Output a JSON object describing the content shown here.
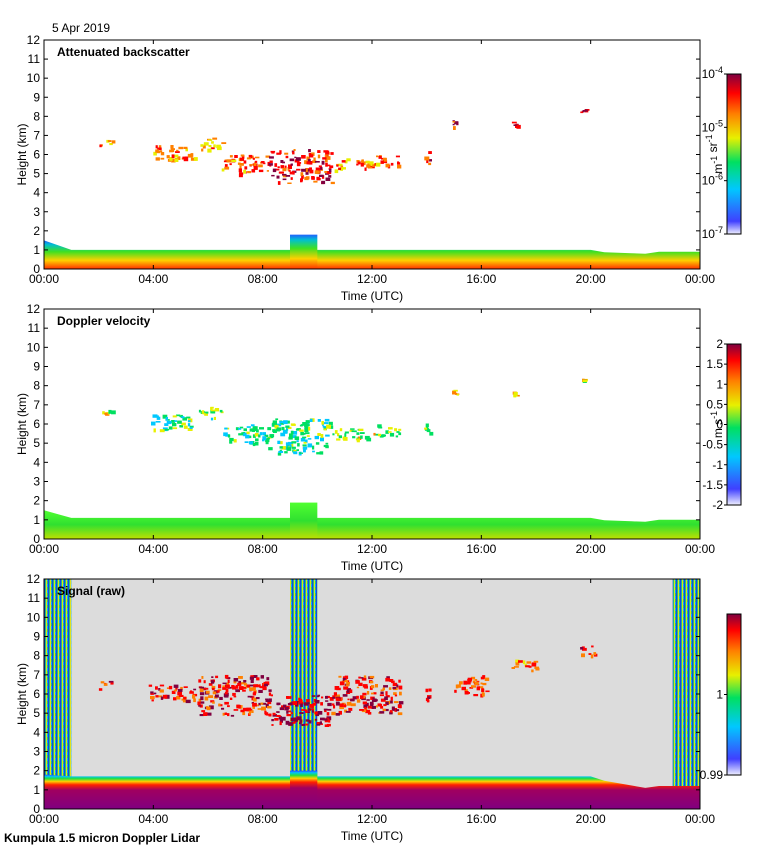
{
  "header": {
    "date": "5 Apr 2019"
  },
  "footer": {
    "instrument": "Kumpula 1.5 micron Doppler Lidar"
  },
  "colors": {
    "background": "#ffffff",
    "raw_fill": "#dcdcdc",
    "axis": "#000000"
  },
  "chart_data": [
    {
      "type": "heatmap",
      "panel_title": "Attenuated backscatter",
      "xlabel": "Time (UTC)",
      "ylabel": "Height (km)",
      "x_ticks": [
        "00:00",
        "04:00",
        "08:00",
        "12:00",
        "16:00",
        "20:00",
        "00:00"
      ],
      "xlim_hours": [
        0,
        24
      ],
      "ylim_km": [
        0,
        12
      ],
      "y_ticks": [
        0,
        1,
        2,
        3,
        4,
        5,
        6,
        7,
        8,
        9,
        10,
        11,
        12
      ],
      "colorbar": {
        "unit_html": "m<sup>-1</sup> sr<sup>-1</sup>",
        "unit": "m-1 sr-1",
        "scale": "log",
        "ticks": [
          "10-7",
          "10-6",
          "10-5",
          "10-4"
        ],
        "range": [
          1e-07,
          0.0001
        ]
      },
      "cloud_layers": [
        {
          "t": [
            2.0,
            2.5
          ],
          "h": [
            6.5,
            6.8
          ],
          "level": 0.65
        },
        {
          "t": [
            3.9,
            5.5
          ],
          "h": [
            5.7,
            6.5
          ],
          "level": 0.68
        },
        {
          "t": [
            5.6,
            6.5
          ],
          "h": [
            6.3,
            6.9
          ],
          "level": 0.62
        },
        {
          "t": [
            6.5,
            8.2
          ],
          "h": [
            5.0,
            6.0
          ],
          "level": 0.72
        },
        {
          "t": [
            8.2,
            10.5
          ],
          "h": [
            4.5,
            6.3
          ],
          "level": 0.85
        },
        {
          "t": [
            10.5,
            12.0
          ],
          "h": [
            5.2,
            5.8
          ],
          "level": 0.7
        },
        {
          "t": [
            12.0,
            13.0
          ],
          "h": [
            5.4,
            6.0
          ],
          "level": 0.75
        },
        {
          "t": [
            13.9,
            14.1
          ],
          "h": [
            5.5,
            6.3
          ],
          "level": 0.8
        },
        {
          "t": [
            14.9,
            15.1
          ],
          "h": [
            7.4,
            7.8
          ],
          "level": 0.9
        },
        {
          "t": [
            17.1,
            17.3
          ],
          "h": [
            7.5,
            7.8
          ],
          "level": 0.9
        },
        {
          "t": [
            19.6,
            19.8
          ],
          "h": [
            8.2,
            8.4
          ],
          "level": 0.95
        }
      ],
      "boundary_layer": {
        "top_km_start": 1.5,
        "top_km_mid": 1.0,
        "top_km_end": 0.9,
        "bump": {
          "t": [
            9.0,
            10.0
          ],
          "top_km": 1.8
        }
      }
    },
    {
      "type": "heatmap",
      "panel_title": "Doppler velocity",
      "xlabel": "Time (UTC)",
      "ylabel": "Height (km)",
      "x_ticks": [
        "00:00",
        "04:00",
        "08:00",
        "12:00",
        "16:00",
        "20:00",
        "00:00"
      ],
      "xlim_hours": [
        0,
        24
      ],
      "ylim_km": [
        0,
        12
      ],
      "y_ticks": [
        0,
        1,
        2,
        3,
        4,
        5,
        6,
        7,
        8,
        9,
        10,
        11,
        12
      ],
      "colorbar": {
        "unit_html": "m s<sup>-1</sup>",
        "unit": "m s-1",
        "scale": "linear",
        "ticks": [
          "-2",
          "-1.5",
          "-1",
          "-0.5",
          "0",
          "0.5",
          "1",
          "1.5",
          "2"
        ],
        "range": [
          -2,
          2
        ]
      },
      "cloud_layers": [
        {
          "t": [
            2.0,
            2.5
          ],
          "h": [
            6.5,
            6.8
          ],
          "level": 0.45
        },
        {
          "t": [
            3.9,
            5.5
          ],
          "h": [
            5.7,
            6.5
          ],
          "level": 0.3
        },
        {
          "t": [
            5.6,
            6.5
          ],
          "h": [
            6.3,
            6.9
          ],
          "level": 0.4
        },
        {
          "t": [
            6.5,
            8.2
          ],
          "h": [
            5.0,
            6.0
          ],
          "level": 0.28
        },
        {
          "t": [
            8.2,
            10.5
          ],
          "h": [
            4.5,
            6.3
          ],
          "level": 0.3
        },
        {
          "t": [
            10.5,
            12.0
          ],
          "h": [
            5.2,
            5.8
          ],
          "level": 0.42
        },
        {
          "t": [
            12.0,
            13.0
          ],
          "h": [
            5.4,
            6.0
          ],
          "level": 0.45
        },
        {
          "t": [
            13.9,
            14.1
          ],
          "h": [
            5.5,
            6.3
          ],
          "level": 0.42
        },
        {
          "t": [
            14.9,
            15.1
          ],
          "h": [
            7.4,
            7.8
          ],
          "level": 0.55
        },
        {
          "t": [
            17.1,
            17.3
          ],
          "h": [
            7.5,
            7.8
          ],
          "level": 0.55
        },
        {
          "t": [
            19.6,
            19.8
          ],
          "h": [
            8.2,
            8.4
          ],
          "level": 0.55
        }
      ],
      "boundary_layer": {
        "top_km_start": 1.5,
        "top_km_mid": 1.1,
        "top_km_end": 1.0,
        "bump": {
          "t": [
            9.0,
            10.0
          ],
          "top_km": 1.9
        }
      }
    },
    {
      "type": "heatmap",
      "panel_title": "Signal (raw)",
      "xlabel": "Time (UTC)",
      "ylabel": "Height (km)",
      "x_ticks": [
        "00:00",
        "04:00",
        "08:00",
        "12:00",
        "16:00",
        "20:00",
        "00:00"
      ],
      "xlim_hours": [
        0,
        24
      ],
      "ylim_km": [
        0,
        12
      ],
      "y_ticks": [
        0,
        1,
        2,
        3,
        4,
        5,
        6,
        7,
        8,
        9,
        10,
        11,
        12
      ],
      "colorbar": {
        "unit": "",
        "scale": "linear",
        "ticks": [
          "0.99",
          "1"
        ],
        "range": [
          0.99,
          1.01
        ]
      },
      "noise_columns": [
        {
          "t": [
            0.0,
            1.0
          ]
        },
        {
          "t": [
            9.0,
            10.0
          ]
        },
        {
          "t": [
            23.0,
            24.0
          ]
        }
      ],
      "cloud_layers": [
        {
          "t": [
            2.0,
            2.5
          ],
          "h": [
            6.3,
            6.8
          ],
          "level": 0.8
        },
        {
          "t": [
            3.8,
            5.5
          ],
          "h": [
            5.7,
            6.5
          ],
          "level": 0.85
        },
        {
          "t": [
            5.6,
            8.3
          ],
          "h": [
            4.9,
            7.0
          ],
          "level": 0.85
        },
        {
          "t": [
            8.3,
            10.5
          ],
          "h": [
            4.4,
            6.0
          ],
          "level": 0.95
        },
        {
          "t": [
            10.5,
            13.0
          ],
          "h": [
            5.0,
            7.0
          ],
          "level": 0.85
        },
        {
          "t": [
            13.9,
            14.1
          ],
          "h": [
            5.3,
            6.4
          ],
          "level": 0.85
        },
        {
          "t": [
            15.0,
            16.2
          ],
          "h": [
            6.0,
            7.0
          ],
          "level": 0.75
        },
        {
          "t": [
            17.0,
            18.0
          ],
          "h": [
            7.2,
            7.8
          ],
          "level": 0.7
        },
        {
          "t": [
            19.6,
            20.2
          ],
          "h": [
            8.0,
            8.6
          ],
          "level": 0.8
        }
      ],
      "boundary_layer": {
        "top_km_start": 1.8,
        "top_km_mid": 1.7,
        "top_km_end": 1.2,
        "bump": {
          "t": [
            9.0,
            10.0
          ],
          "top_km": 2.0
        }
      }
    }
  ]
}
